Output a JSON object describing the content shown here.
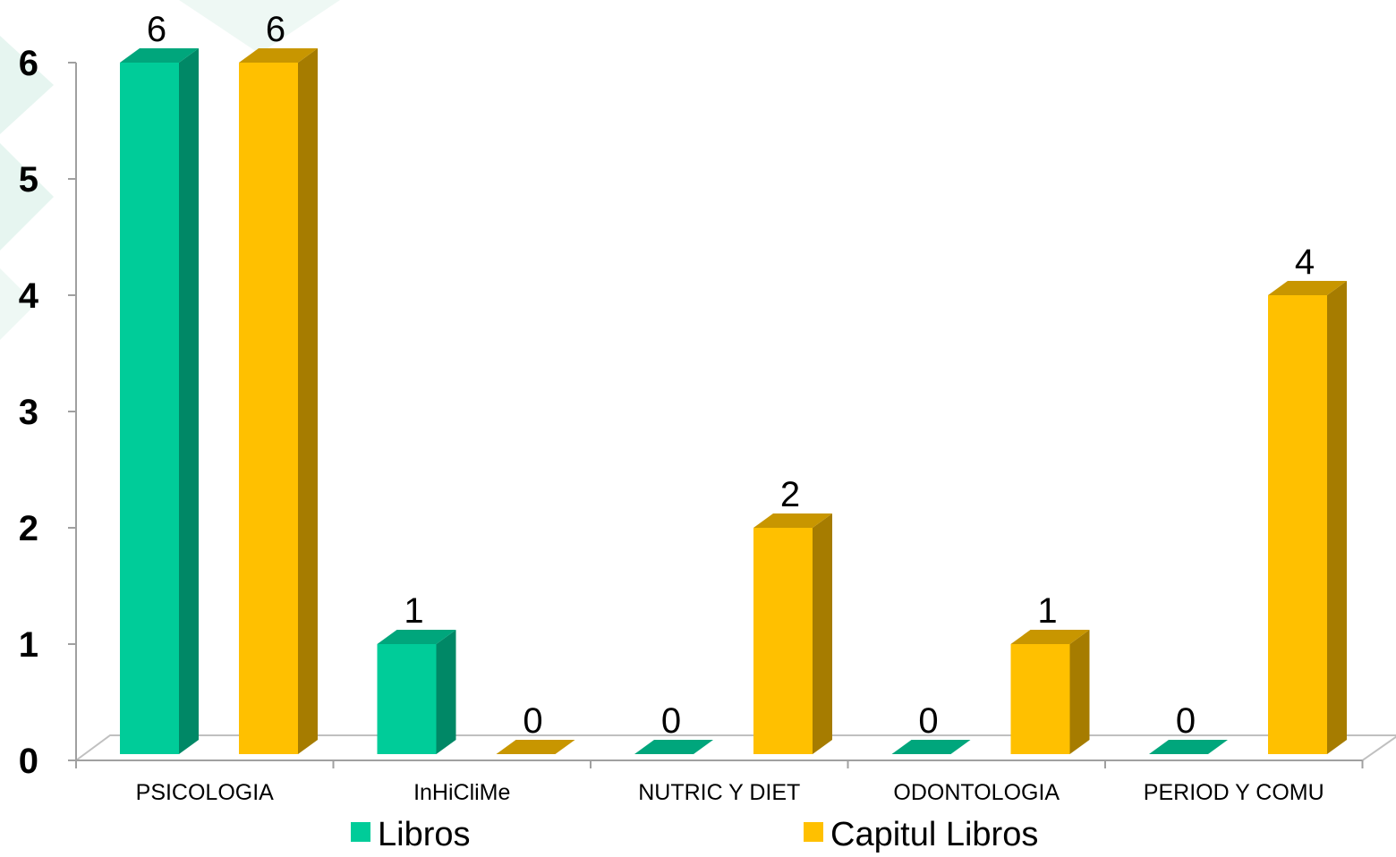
{
  "chart_data": {
    "type": "bar",
    "title": "",
    "xlabel": "",
    "ylabel": "",
    "categories": [
      "PSICOLOGIA",
      "InHiCliMe",
      "NUTRIC Y DIET",
      "ODONTOLOGIA",
      "PERIOD Y COMU"
    ],
    "series": [
      {
        "name": "Libros",
        "values": [
          6,
          1,
          0,
          0,
          0
        ],
        "color": "#00CC99",
        "side_color": "#008866",
        "top_color": "#00A67C"
      },
      {
        "name": "Capitul Libros",
        "values": [
          6,
          0,
          2,
          1,
          4
        ],
        "color": "#FFC000",
        "side_color": "#A67C00",
        "top_color": "#C89600"
      }
    ],
    "ylim": [
      0,
      6
    ],
    "yticks": [
      0,
      1,
      2,
      3,
      4,
      5,
      6
    ],
    "grid": false,
    "legend": "bottom",
    "three_d": true,
    "data_labels": true
  }
}
